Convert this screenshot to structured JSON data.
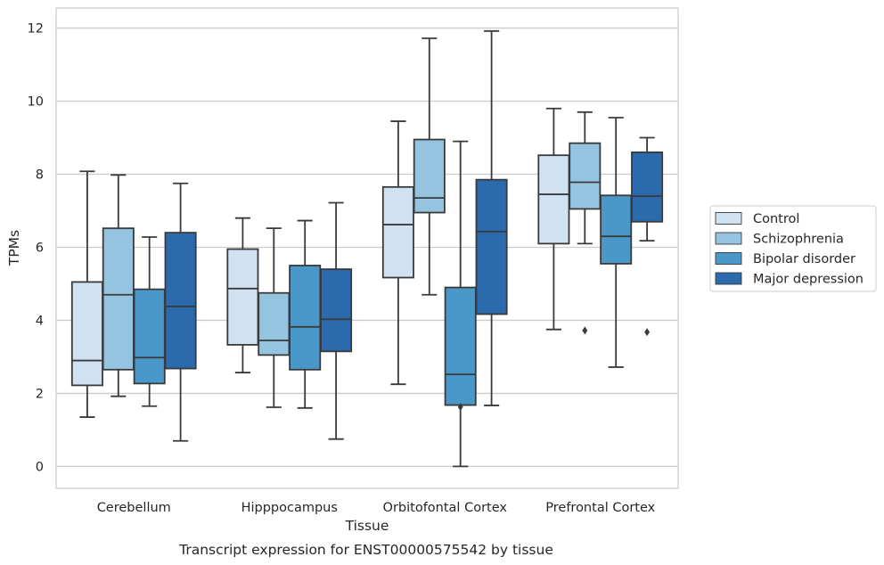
{
  "chart_data": {
    "type": "box",
    "xlabel": "Tissue",
    "ylabel": "TPMs",
    "caption": "Transcript expression for ENST00000575542 by tissue",
    "categories": [
      "Cerebellum",
      "Hipppocampus",
      "Orbitofontal Cortex",
      "Prefrontal Cortex"
    ],
    "ylim": [
      -0.6,
      12.55
    ],
    "yticks": [
      0,
      2,
      4,
      6,
      8,
      10,
      12
    ],
    "grid": true,
    "legend_position": "right",
    "series": [
      {
        "name": "Control",
        "color": "#d0e1f2",
        "boxes": [
          {
            "min": 1.35,
            "q1": 2.22,
            "median": 2.9,
            "q3": 5.05,
            "max": 8.08,
            "outliers": []
          },
          {
            "min": 2.57,
            "q1": 3.33,
            "median": 4.87,
            "q3": 5.95,
            "max": 6.8,
            "outliers": []
          },
          {
            "min": 2.25,
            "q1": 5.17,
            "median": 6.62,
            "q3": 7.65,
            "max": 9.45,
            "outliers": []
          },
          {
            "min": 3.75,
            "q1": 6.1,
            "median": 7.45,
            "q3": 8.52,
            "max": 9.8,
            "outliers": []
          }
        ]
      },
      {
        "name": "Schizophrenia",
        "color": "#94c4df",
        "boxes": [
          {
            "min": 1.92,
            "q1": 2.65,
            "median": 4.7,
            "q3": 6.52,
            "max": 7.98,
            "outliers": []
          },
          {
            "min": 1.62,
            "q1": 3.05,
            "median": 3.45,
            "q3": 4.75,
            "max": 6.52,
            "outliers": []
          },
          {
            "min": 4.7,
            "q1": 6.95,
            "median": 7.35,
            "q3": 8.95,
            "max": 11.72,
            "outliers": []
          },
          {
            "min": 6.1,
            "q1": 7.05,
            "median": 7.78,
            "q3": 8.85,
            "max": 9.7,
            "outliers": [
              3.72
            ]
          }
        ]
      },
      {
        "name": "Bipolar disorder",
        "color": "#4a98c9",
        "boxes": [
          {
            "min": 1.65,
            "q1": 2.27,
            "median": 2.98,
            "q3": 4.85,
            "max": 6.28,
            "outliers": []
          },
          {
            "min": 1.6,
            "q1": 2.65,
            "median": 3.82,
            "q3": 5.5,
            "max": 6.73,
            "outliers": []
          },
          {
            "min": 0.0,
            "q1": 1.68,
            "median": 2.52,
            "q3": 4.9,
            "max": 8.9,
            "outliers": [
              1.63
            ]
          },
          {
            "min": 2.72,
            "q1": 5.55,
            "median": 6.3,
            "q3": 7.42,
            "max": 9.55,
            "outliers": []
          }
        ]
      },
      {
        "name": "Major depression",
        "color": "#2a6aad",
        "boxes": [
          {
            "min": 0.7,
            "q1": 2.68,
            "median": 4.38,
            "q3": 6.4,
            "max": 7.75,
            "outliers": []
          },
          {
            "min": 0.75,
            "q1": 3.15,
            "median": 4.03,
            "q3": 5.4,
            "max": 7.22,
            "outliers": []
          },
          {
            "min": 1.67,
            "q1": 4.17,
            "median": 6.43,
            "q3": 7.85,
            "max": 11.92,
            "outliers": []
          },
          {
            "min": 6.18,
            "q1": 6.7,
            "median": 7.4,
            "q3": 8.6,
            "max": 9.0,
            "outliers": [
              3.68
            ]
          }
        ]
      }
    ]
  }
}
